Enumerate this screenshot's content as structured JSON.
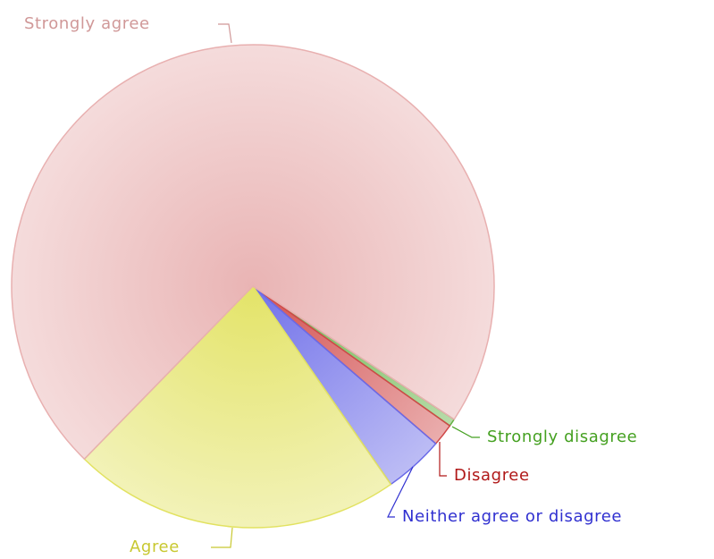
{
  "chart_data": {
    "type": "pie",
    "categories": [
      "Strongly disagree",
      "Disagree",
      "Neither agree or disagree",
      "Agree",
      "Strongly agree"
    ],
    "values": [
      0.5,
      1.5,
      4,
      22,
      72
    ],
    "colors": [
      "#60b040",
      "#d04848",
      "#6a6ae8",
      "#e2e260",
      "#e8b0b0"
    ],
    "label_colors": [
      "#44a020",
      "#b01818",
      "#3030d0",
      "#c8c830",
      "#d09898"
    ]
  }
}
